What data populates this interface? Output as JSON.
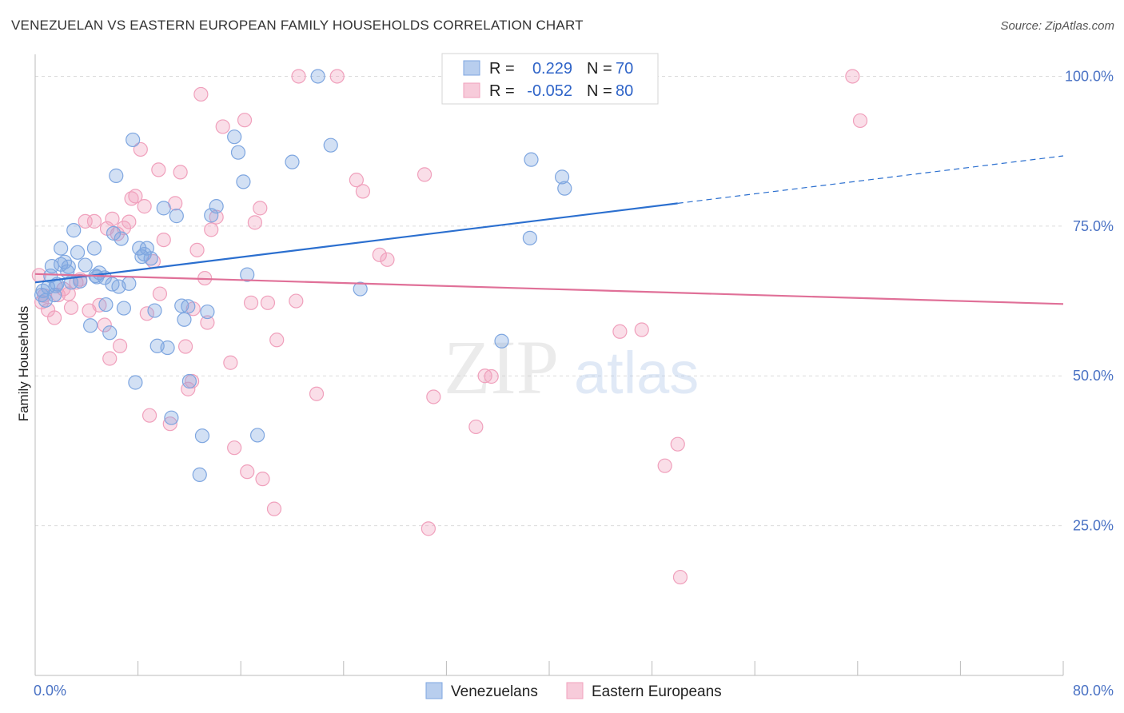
{
  "chart_data": {
    "type": "scatter",
    "title": "VENEZUELAN VS EASTERN EUROPEAN FAMILY HOUSEHOLDS CORRELATION CHART",
    "source": "Source: ZipAtlas.com",
    "ylabel": "Family Households",
    "xlabel": "",
    "xlim": [
      0,
      80
    ],
    "ylim": [
      0,
      105
    ],
    "x_tick_labels": [
      "0.0%",
      "80.0%"
    ],
    "y_ticks": [
      25,
      50,
      75,
      100
    ],
    "y_tick_labels": [
      "25.0%",
      "50.0%",
      "75.0%",
      "100.0%"
    ],
    "grid": true,
    "legend_position": "top-center",
    "watermark": "ZIPatlas",
    "stats": [
      {
        "r_label": "R =",
        "r_value": "0.229",
        "n_label": "N =",
        "n_value": "70"
      },
      {
        "r_label": "R =",
        "r_value": "-0.052",
        "n_label": "N =",
        "n_value": "80"
      }
    ],
    "series": [
      {
        "name": "Venezuelans",
        "color": "#7ea6e0",
        "line_color": "#2b6fcf",
        "trend": {
          "x0": 0,
          "y0": 65.6,
          "x1": 50,
          "y1": 78.8,
          "x_dash_end": 80
        },
        "points": [
          [
            0.5,
            63.5
          ],
          [
            0.6,
            64.2
          ],
          [
            0.8,
            62.6
          ],
          [
            1.0,
            64.8
          ],
          [
            1.2,
            66.7
          ],
          [
            1.3,
            68.3
          ],
          [
            1.5,
            63.5
          ],
          [
            1.7,
            65.3
          ],
          [
            2.0,
            68.6
          ],
          [
            2.0,
            71.3
          ],
          [
            2.3,
            69.0
          ],
          [
            2.5,
            67.4
          ],
          [
            2.6,
            68.2
          ],
          [
            3.0,
            74.3
          ],
          [
            3.3,
            70.6
          ],
          [
            3.5,
            65.8
          ],
          [
            3.9,
            68.5
          ],
          [
            4.3,
            58.4
          ],
          [
            4.6,
            71.3
          ],
          [
            4.7,
            66.7
          ],
          [
            5.0,
            67.2
          ],
          [
            5.4,
            66.4
          ],
          [
            5.5,
            61.9
          ],
          [
            5.8,
            57.2
          ],
          [
            6.0,
            65.3
          ],
          [
            6.3,
            83.4
          ],
          [
            6.5,
            64.9
          ],
          [
            6.7,
            72.9
          ],
          [
            6.9,
            61.3
          ],
          [
            7.3,
            65.4
          ],
          [
            7.6,
            89.4
          ],
          [
            7.8,
            48.9
          ],
          [
            8.1,
            71.3
          ],
          [
            8.3,
            69.9
          ],
          [
            8.5,
            70.3
          ],
          [
            8.7,
            71.3
          ],
          [
            9.0,
            69.6
          ],
          [
            9.3,
            60.9
          ],
          [
            9.5,
            55.0
          ],
          [
            10.0,
            78.0
          ],
          [
            10.3,
            54.7
          ],
          [
            10.6,
            43.0
          ],
          [
            11.0,
            76.7
          ],
          [
            11.4,
            61.7
          ],
          [
            11.6,
            59.4
          ],
          [
            11.9,
            61.6
          ],
          [
            12.0,
            49.1
          ],
          [
            13.0,
            40.0
          ],
          [
            13.4,
            60.7
          ],
          [
            13.7,
            76.8
          ],
          [
            14.1,
            78.3
          ],
          [
            12.8,
            33.5
          ],
          [
            15.5,
            89.9
          ],
          [
            15.8,
            87.3
          ],
          [
            16.2,
            82.4
          ],
          [
            16.5,
            66.9
          ],
          [
            17.3,
            40.1
          ],
          [
            20.0,
            85.7
          ],
          [
            22.0,
            100.0
          ],
          [
            23.0,
            88.5
          ],
          [
            25.3,
            64.5
          ],
          [
            36.3,
            55.8
          ],
          [
            38.5,
            73.0
          ],
          [
            38.6,
            86.1
          ],
          [
            41.0,
            83.2
          ],
          [
            41.2,
            81.3
          ],
          [
            6.1,
            73.8
          ],
          [
            4.8,
            66.5
          ],
          [
            2.8,
            65.6
          ],
          [
            1.6,
            65.0
          ]
        ]
      },
      {
        "name": "Eastern Europeans",
        "color": "#f0a0bc",
        "line_color": "#e07098",
        "trend": {
          "x0": 0,
          "y0": 67.0,
          "x1": 80,
          "y1": 62.0
        },
        "points": [
          [
            0.3,
            66.8
          ],
          [
            0.5,
            62.3
          ],
          [
            0.7,
            63.4
          ],
          [
            1.0,
            61.0
          ],
          [
            1.5,
            59.7
          ],
          [
            1.8,
            63.5
          ],
          [
            2.2,
            64.5
          ],
          [
            2.6,
            63.7
          ],
          [
            2.8,
            61.4
          ],
          [
            3.2,
            65.6
          ],
          [
            3.5,
            66.1
          ],
          [
            3.9,
            75.8
          ],
          [
            4.2,
            60.9
          ],
          [
            4.6,
            75.8
          ],
          [
            5.0,
            61.8
          ],
          [
            5.4,
            58.5
          ],
          [
            5.6,
            74.6
          ],
          [
            5.8,
            52.9
          ],
          [
            6.0,
            76.2
          ],
          [
            6.4,
            73.7
          ],
          [
            6.9,
            74.7
          ],
          [
            7.3,
            75.7
          ],
          [
            7.5,
            79.6
          ],
          [
            7.8,
            80.0
          ],
          [
            8.2,
            87.8
          ],
          [
            8.5,
            78.3
          ],
          [
            8.9,
            43.4
          ],
          [
            9.2,
            69.1
          ],
          [
            9.6,
            84.4
          ],
          [
            10.0,
            72.7
          ],
          [
            10.5,
            42.0
          ],
          [
            10.9,
            78.8
          ],
          [
            11.3,
            84.0
          ],
          [
            11.7,
            54.9
          ],
          [
            11.9,
            47.8
          ],
          [
            12.2,
            49.1
          ],
          [
            12.6,
            71.0
          ],
          [
            12.9,
            97.0
          ],
          [
            13.4,
            58.9
          ],
          [
            13.7,
            74.4
          ],
          [
            14.1,
            76.5
          ],
          [
            14.6,
            91.6
          ],
          [
            15.2,
            52.2
          ],
          [
            15.5,
            38.0
          ],
          [
            16.3,
            92.7
          ],
          [
            16.5,
            34.0
          ],
          [
            16.8,
            62.2
          ],
          [
            17.1,
            75.6
          ],
          [
            17.5,
            78.0
          ],
          [
            17.7,
            32.8
          ],
          [
            18.1,
            62.2
          ],
          [
            18.6,
            27.8
          ],
          [
            18.8,
            56.0
          ],
          [
            20.3,
            62.5
          ],
          [
            20.5,
            100.0
          ],
          [
            21.9,
            47.0
          ],
          [
            23.5,
            100.0
          ],
          [
            25.0,
            82.7
          ],
          [
            25.5,
            80.8
          ],
          [
            26.8,
            70.2
          ],
          [
            27.4,
            69.4
          ],
          [
            30.3,
            83.6
          ],
          [
            30.6,
            24.5
          ],
          [
            31.0,
            46.5
          ],
          [
            34.3,
            41.5
          ],
          [
            35.0,
            50.0
          ],
          [
            35.5,
            49.9
          ],
          [
            40.0,
            100.0
          ],
          [
            45.5,
            57.4
          ],
          [
            47.2,
            57.7
          ],
          [
            49.0,
            35.0
          ],
          [
            50.0,
            38.6
          ],
          [
            50.2,
            16.4
          ],
          [
            63.6,
            100.0
          ],
          [
            64.2,
            92.6
          ],
          [
            13.2,
            66.3
          ],
          [
            12.3,
            61.2
          ],
          [
            9.7,
            63.7
          ],
          [
            8.7,
            60.4
          ],
          [
            6.6,
            55.0
          ]
        ]
      }
    ]
  }
}
